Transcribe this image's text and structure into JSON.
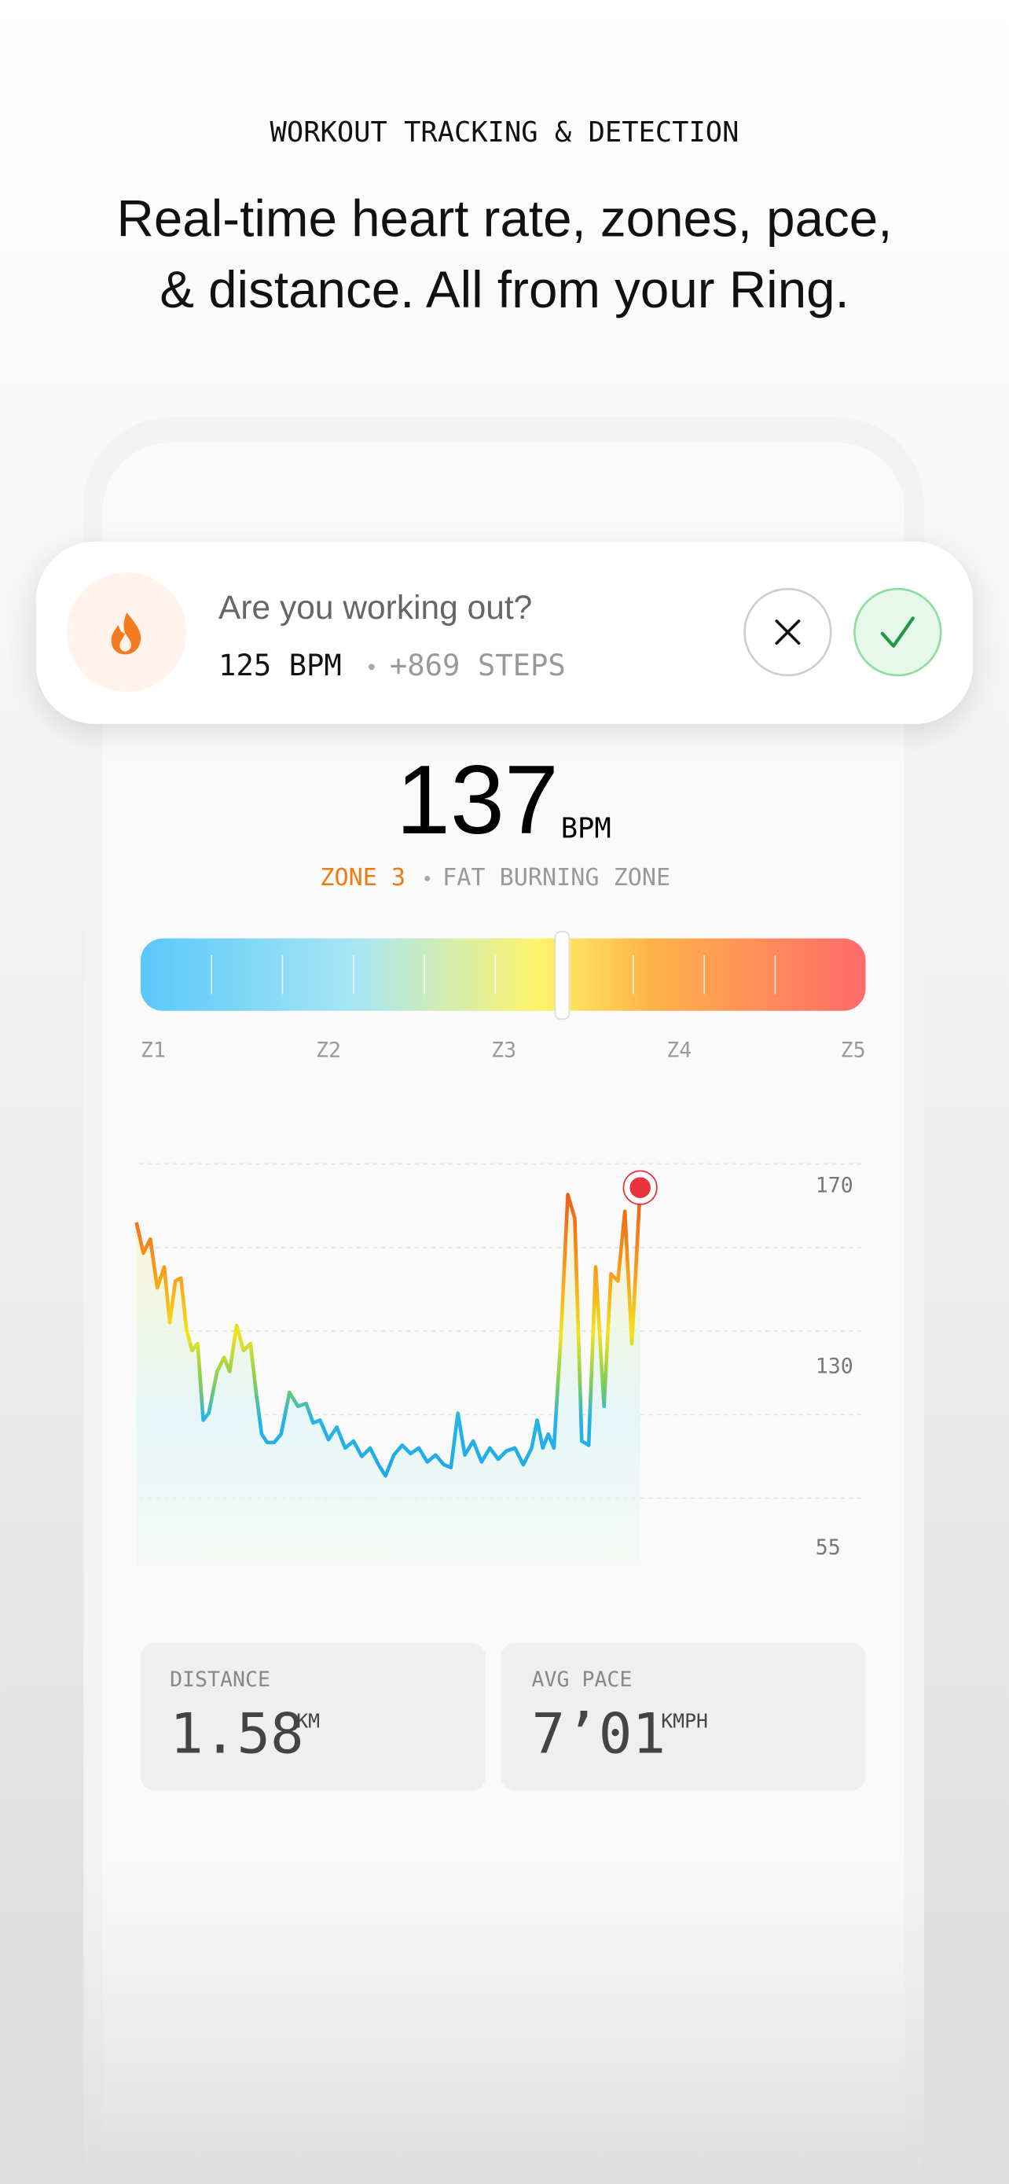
{
  "header": {
    "eyebrow": "WORKOUT TRACKING & DETECTION",
    "headline_lines": [
      "Real-time heart rate, zones, pace,",
      "& distance. All from your Ring."
    ]
  },
  "prompt": {
    "question": "Are you working out?",
    "bpm": "125 BPM",
    "steps": "+869 STEPS"
  },
  "heart_rate": {
    "value": "137",
    "unit": "BPM",
    "zone": "ZONE 3",
    "zone_name": "FAT BURNING ZONE",
    "zone_labels": [
      "Z1",
      "Z2",
      "Z3",
      "Z4",
      "Z5"
    ]
  },
  "chart": {
    "y_labels": [
      "170",
      "130",
      "55"
    ]
  },
  "stats": [
    {
      "label": "DISTANCE",
      "value": "1.58",
      "unit": "KM"
    },
    {
      "label": "AVG PACE",
      "value": "7’01",
      "unit": "KMPH"
    }
  ]
}
